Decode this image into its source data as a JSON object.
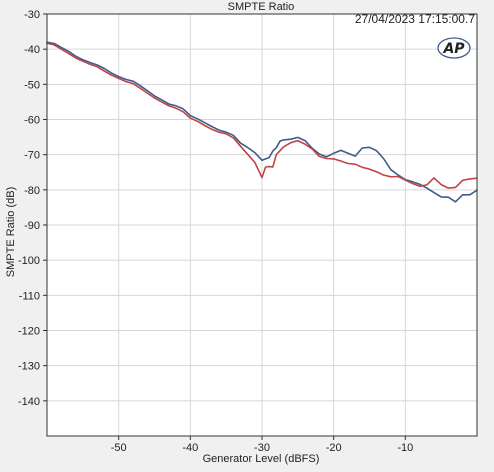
{
  "chart_data": {
    "type": "line",
    "title": "SMPTE Ratio",
    "timestamp": "27/04/2023 17:15:00.7",
    "xlabel": "Generator Level (dBFS)",
    "ylabel": "SMPTE Ratio (dB)",
    "xlim": [
      -60,
      0
    ],
    "ylim": [
      -150,
      -30
    ],
    "x_ticks": [
      -50,
      -40,
      -30,
      -20,
      -10
    ],
    "y_ticks": [
      -30,
      -40,
      -50,
      -60,
      -70,
      -80,
      -90,
      -100,
      -110,
      -120,
      -130,
      -140
    ],
    "grid": true,
    "legend": "none",
    "logo_text": "AP",
    "colors": {
      "background": "#f0f0f0",
      "plot_background": "#ffffff",
      "grid": "#d7d7d7",
      "axis": "#333333",
      "logo": "#3d5d8c"
    },
    "series": [
      {
        "color": "#3d5d8c",
        "points": [
          [
            -60.0,
            -38.0
          ],
          [
            -59.0,
            -38.4
          ],
          [
            -58.0,
            -39.5
          ],
          [
            -57.0,
            -40.6
          ],
          [
            -56.0,
            -42.0
          ],
          [
            -55.0,
            -43.0
          ],
          [
            -54.0,
            -43.8
          ],
          [
            -53.0,
            -44.5
          ],
          [
            -52.0,
            -45.5
          ],
          [
            -51.0,
            -46.8
          ],
          [
            -50.0,
            -47.8
          ],
          [
            -49.0,
            -48.6
          ],
          [
            -48.0,
            -49.1
          ],
          [
            -47.0,
            -50.4
          ],
          [
            -46.0,
            -51.8
          ],
          [
            -45.0,
            -53.3
          ],
          [
            -44.0,
            -54.4
          ],
          [
            -43.0,
            -55.6
          ],
          [
            -42.0,
            -56.1
          ],
          [
            -41.0,
            -57.0
          ],
          [
            -40.0,
            -58.9
          ],
          [
            -39.0,
            -59.8
          ],
          [
            -38.0,
            -60.9
          ],
          [
            -37.0,
            -62.0
          ],
          [
            -36.0,
            -63.0
          ],
          [
            -35.0,
            -63.6
          ],
          [
            -34.0,
            -64.5
          ],
          [
            -33.0,
            -66.7
          ],
          [
            -32.0,
            -68.0
          ],
          [
            -31.0,
            -69.4
          ],
          [
            -30.0,
            -71.6
          ],
          [
            -29.0,
            -70.8
          ],
          [
            -28.5,
            -69.0
          ],
          [
            -28.0,
            -68.0
          ],
          [
            -27.5,
            -66.2
          ],
          [
            -27.0,
            -65.8
          ],
          [
            -26.0,
            -65.6
          ],
          [
            -25.0,
            -65.1
          ],
          [
            -24.0,
            -66.0
          ],
          [
            -23.0,
            -68.2
          ],
          [
            -22.0,
            -69.8
          ],
          [
            -21.0,
            -70.6
          ],
          [
            -20.0,
            -69.6
          ],
          [
            -19.0,
            -68.8
          ],
          [
            -18.0,
            -69.6
          ],
          [
            -17.0,
            -70.4
          ],
          [
            -16.0,
            -68.1
          ],
          [
            -15.0,
            -67.9
          ],
          [
            -14.0,
            -68.9
          ],
          [
            -13.0,
            -71.2
          ],
          [
            -12.0,
            -74.3
          ],
          [
            -11.0,
            -75.8
          ],
          [
            -10.0,
            -77.1
          ],
          [
            -9.0,
            -77.7
          ],
          [
            -8.0,
            -78.4
          ],
          [
            -7.0,
            -79.5
          ],
          [
            -6.0,
            -80.8
          ],
          [
            -5.0,
            -82.0
          ],
          [
            -4.0,
            -82.1
          ],
          [
            -3.0,
            -83.4
          ],
          [
            -2.0,
            -81.4
          ],
          [
            -1.0,
            -81.4
          ],
          [
            0.0,
            -80.1
          ]
        ]
      },
      {
        "color": "#c04444",
        "points": [
          [
            -60.0,
            -38.3
          ],
          [
            -59.0,
            -38.8
          ],
          [
            -58.0,
            -40.0
          ],
          [
            -57.0,
            -41.2
          ],
          [
            -56.0,
            -42.5
          ],
          [
            -55.0,
            -43.4
          ],
          [
            -54.0,
            -44.3
          ],
          [
            -53.0,
            -45.0
          ],
          [
            -52.0,
            -46.2
          ],
          [
            -51.0,
            -47.4
          ],
          [
            -50.0,
            -48.3
          ],
          [
            -49.0,
            -49.2
          ],
          [
            -48.0,
            -49.8
          ],
          [
            -47.0,
            -51.1
          ],
          [
            -46.0,
            -52.5
          ],
          [
            -45.0,
            -53.9
          ],
          [
            -44.0,
            -55.0
          ],
          [
            -43.0,
            -56.1
          ],
          [
            -42.0,
            -56.8
          ],
          [
            -41.0,
            -57.8
          ],
          [
            -40.0,
            -59.6
          ],
          [
            -39.0,
            -60.5
          ],
          [
            -38.0,
            -61.7
          ],
          [
            -37.0,
            -62.8
          ],
          [
            -36.0,
            -63.6
          ],
          [
            -35.0,
            -64.1
          ],
          [
            -34.0,
            -65.2
          ],
          [
            -33.0,
            -67.6
          ],
          [
            -32.0,
            -69.9
          ],
          [
            -31.0,
            -72.2
          ],
          [
            -30.0,
            -76.5
          ],
          [
            -29.5,
            -73.5
          ],
          [
            -29.0,
            -73.4
          ],
          [
            -28.5,
            -73.5
          ],
          [
            -28.0,
            -70.0
          ],
          [
            -27.0,
            -67.8
          ],
          [
            -26.0,
            -66.6
          ],
          [
            -25.0,
            -66.0
          ],
          [
            -24.0,
            -67.0
          ],
          [
            -23.0,
            -68.4
          ],
          [
            -22.0,
            -70.5
          ],
          [
            -21.0,
            -71.1
          ],
          [
            -20.0,
            -71.2
          ],
          [
            -19.0,
            -71.8
          ],
          [
            -18.0,
            -72.5
          ],
          [
            -17.0,
            -72.7
          ],
          [
            -16.0,
            -73.6
          ],
          [
            -15.0,
            -74.1
          ],
          [
            -14.0,
            -74.9
          ],
          [
            -13.0,
            -75.8
          ],
          [
            -12.0,
            -76.3
          ],
          [
            -11.0,
            -76.2
          ],
          [
            -10.0,
            -77.2
          ],
          [
            -9.0,
            -78.2
          ],
          [
            -8.0,
            -79.0
          ],
          [
            -7.0,
            -78.6
          ],
          [
            -6.0,
            -76.6
          ],
          [
            -5.0,
            -78.5
          ],
          [
            -4.0,
            -79.5
          ],
          [
            -3.0,
            -79.3
          ],
          [
            -2.0,
            -77.3
          ],
          [
            -1.0,
            -76.9
          ],
          [
            0.0,
            -76.7
          ]
        ]
      }
    ]
  }
}
